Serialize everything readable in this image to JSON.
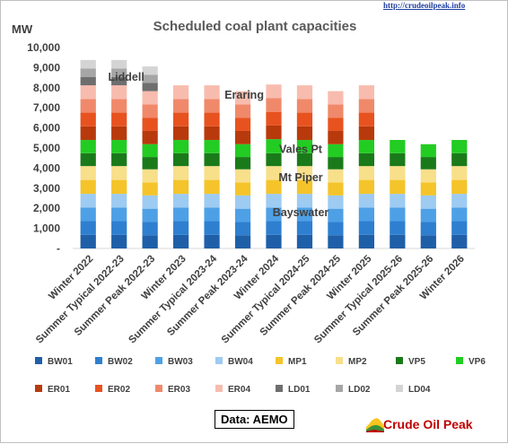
{
  "chart_data": {
    "type": "bar",
    "stacked": true,
    "title": "Scheduled coal plant capacities",
    "ylabel": "MW",
    "ylim": [
      0,
      10000
    ],
    "ytick_step": 1000,
    "ytick_labels": [
      "-",
      "1,000",
      "2,000",
      "3,000",
      "4,000",
      "5,000",
      "6,000",
      "7,000",
      "8,000",
      "9,000",
      "10,000"
    ],
    "grid": false,
    "legend_position": "bottom",
    "categories": [
      "Winter 2022",
      "Summer Typical 2022-23",
      "Summer Peak 2022-23",
      "Winter 2023",
      "Summer Typical 2023-24",
      "Summer Peak 2023-24",
      "Winter 2024",
      "Summer Typical 2024-25",
      "Summer Peak 2024-25",
      "Winter 2025",
      "Summer Typical 2025-26",
      "Summer Peak 2025-26",
      "Winter 2026"
    ],
    "series": [
      {
        "name": "BW01",
        "color": "#1f5fa8",
        "values": [
          680,
          680,
          660,
          680,
          680,
          660,
          680,
          680,
          660,
          680,
          680,
          660,
          680
        ]
      },
      {
        "name": "BW02",
        "color": "#2e7fd0",
        "values": [
          680,
          680,
          660,
          680,
          680,
          660,
          680,
          680,
          660,
          680,
          680,
          660,
          680
        ]
      },
      {
        "name": "BW03",
        "color": "#4ea0e6",
        "values": [
          680,
          680,
          660,
          680,
          680,
          660,
          680,
          680,
          660,
          680,
          680,
          660,
          680
        ]
      },
      {
        "name": "BW04",
        "color": "#9dcbf2",
        "values": [
          680,
          680,
          660,
          680,
          680,
          660,
          680,
          680,
          660,
          680,
          680,
          660,
          680
        ]
      },
      {
        "name": "MP1",
        "color": "#f4c42a",
        "values": [
          690,
          690,
          650,
          690,
          690,
          650,
          690,
          690,
          650,
          690,
          690,
          650,
          690
        ]
      },
      {
        "name": "MP2",
        "color": "#f8df8a",
        "values": [
          690,
          690,
          650,
          690,
          690,
          650,
          690,
          690,
          650,
          690,
          690,
          650,
          690
        ]
      },
      {
        "name": "VP5",
        "color": "#1a7a1a",
        "values": [
          640,
          640,
          610,
          640,
          640,
          610,
          640,
          640,
          610,
          640,
          640,
          610,
          640
        ]
      },
      {
        "name": "VP6",
        "color": "#22cc22",
        "values": [
          660,
          660,
          640,
          660,
          660,
          640,
          700,
          660,
          640,
          660,
          660,
          640,
          660
        ]
      },
      {
        "name": "ER01",
        "color": "#b83a0c",
        "values": [
          680,
          680,
          660,
          680,
          680,
          660,
          680,
          680,
          660,
          680,
          0,
          0,
          0
        ]
      },
      {
        "name": "ER02",
        "color": "#e8521f",
        "values": [
          680,
          680,
          660,
          680,
          680,
          660,
          680,
          680,
          660,
          680,
          0,
          0,
          0
        ]
      },
      {
        "name": "ER03",
        "color": "#f0896a",
        "values": [
          680,
          680,
          660,
          680,
          680,
          660,
          680,
          680,
          660,
          680,
          0,
          0,
          0
        ]
      },
      {
        "name": "ER04",
        "color": "#f8bcae",
        "values": [
          680,
          680,
          660,
          680,
          680,
          660,
          680,
          680,
          660,
          680,
          0,
          0,
          0
        ]
      },
      {
        "name": "LD01",
        "color": "#6e6e6e",
        "values": [
          420,
          420,
          410,
          0,
          0,
          0,
          0,
          0,
          0,
          0,
          0,
          0,
          0
        ]
      },
      {
        "name": "LD02",
        "color": "#a6a6a6",
        "values": [
          420,
          420,
          410,
          0,
          0,
          0,
          0,
          0,
          0,
          0,
          0,
          0,
          0
        ]
      },
      {
        "name": "LD04",
        "color": "#d4d4d4",
        "values": [
          420,
          420,
          410,
          0,
          0,
          0,
          0,
          0,
          0,
          0,
          0,
          0,
          0
        ]
      }
    ],
    "annotations": [
      "Liddell",
      "Eraring",
      "Vales Pt",
      "Mt Piper",
      "Bayswater"
    ]
  },
  "source": "Data: AEMO",
  "logo": {
    "url_text": "http://crudeoilpeak.info",
    "name": "Crude Oil Peak"
  }
}
